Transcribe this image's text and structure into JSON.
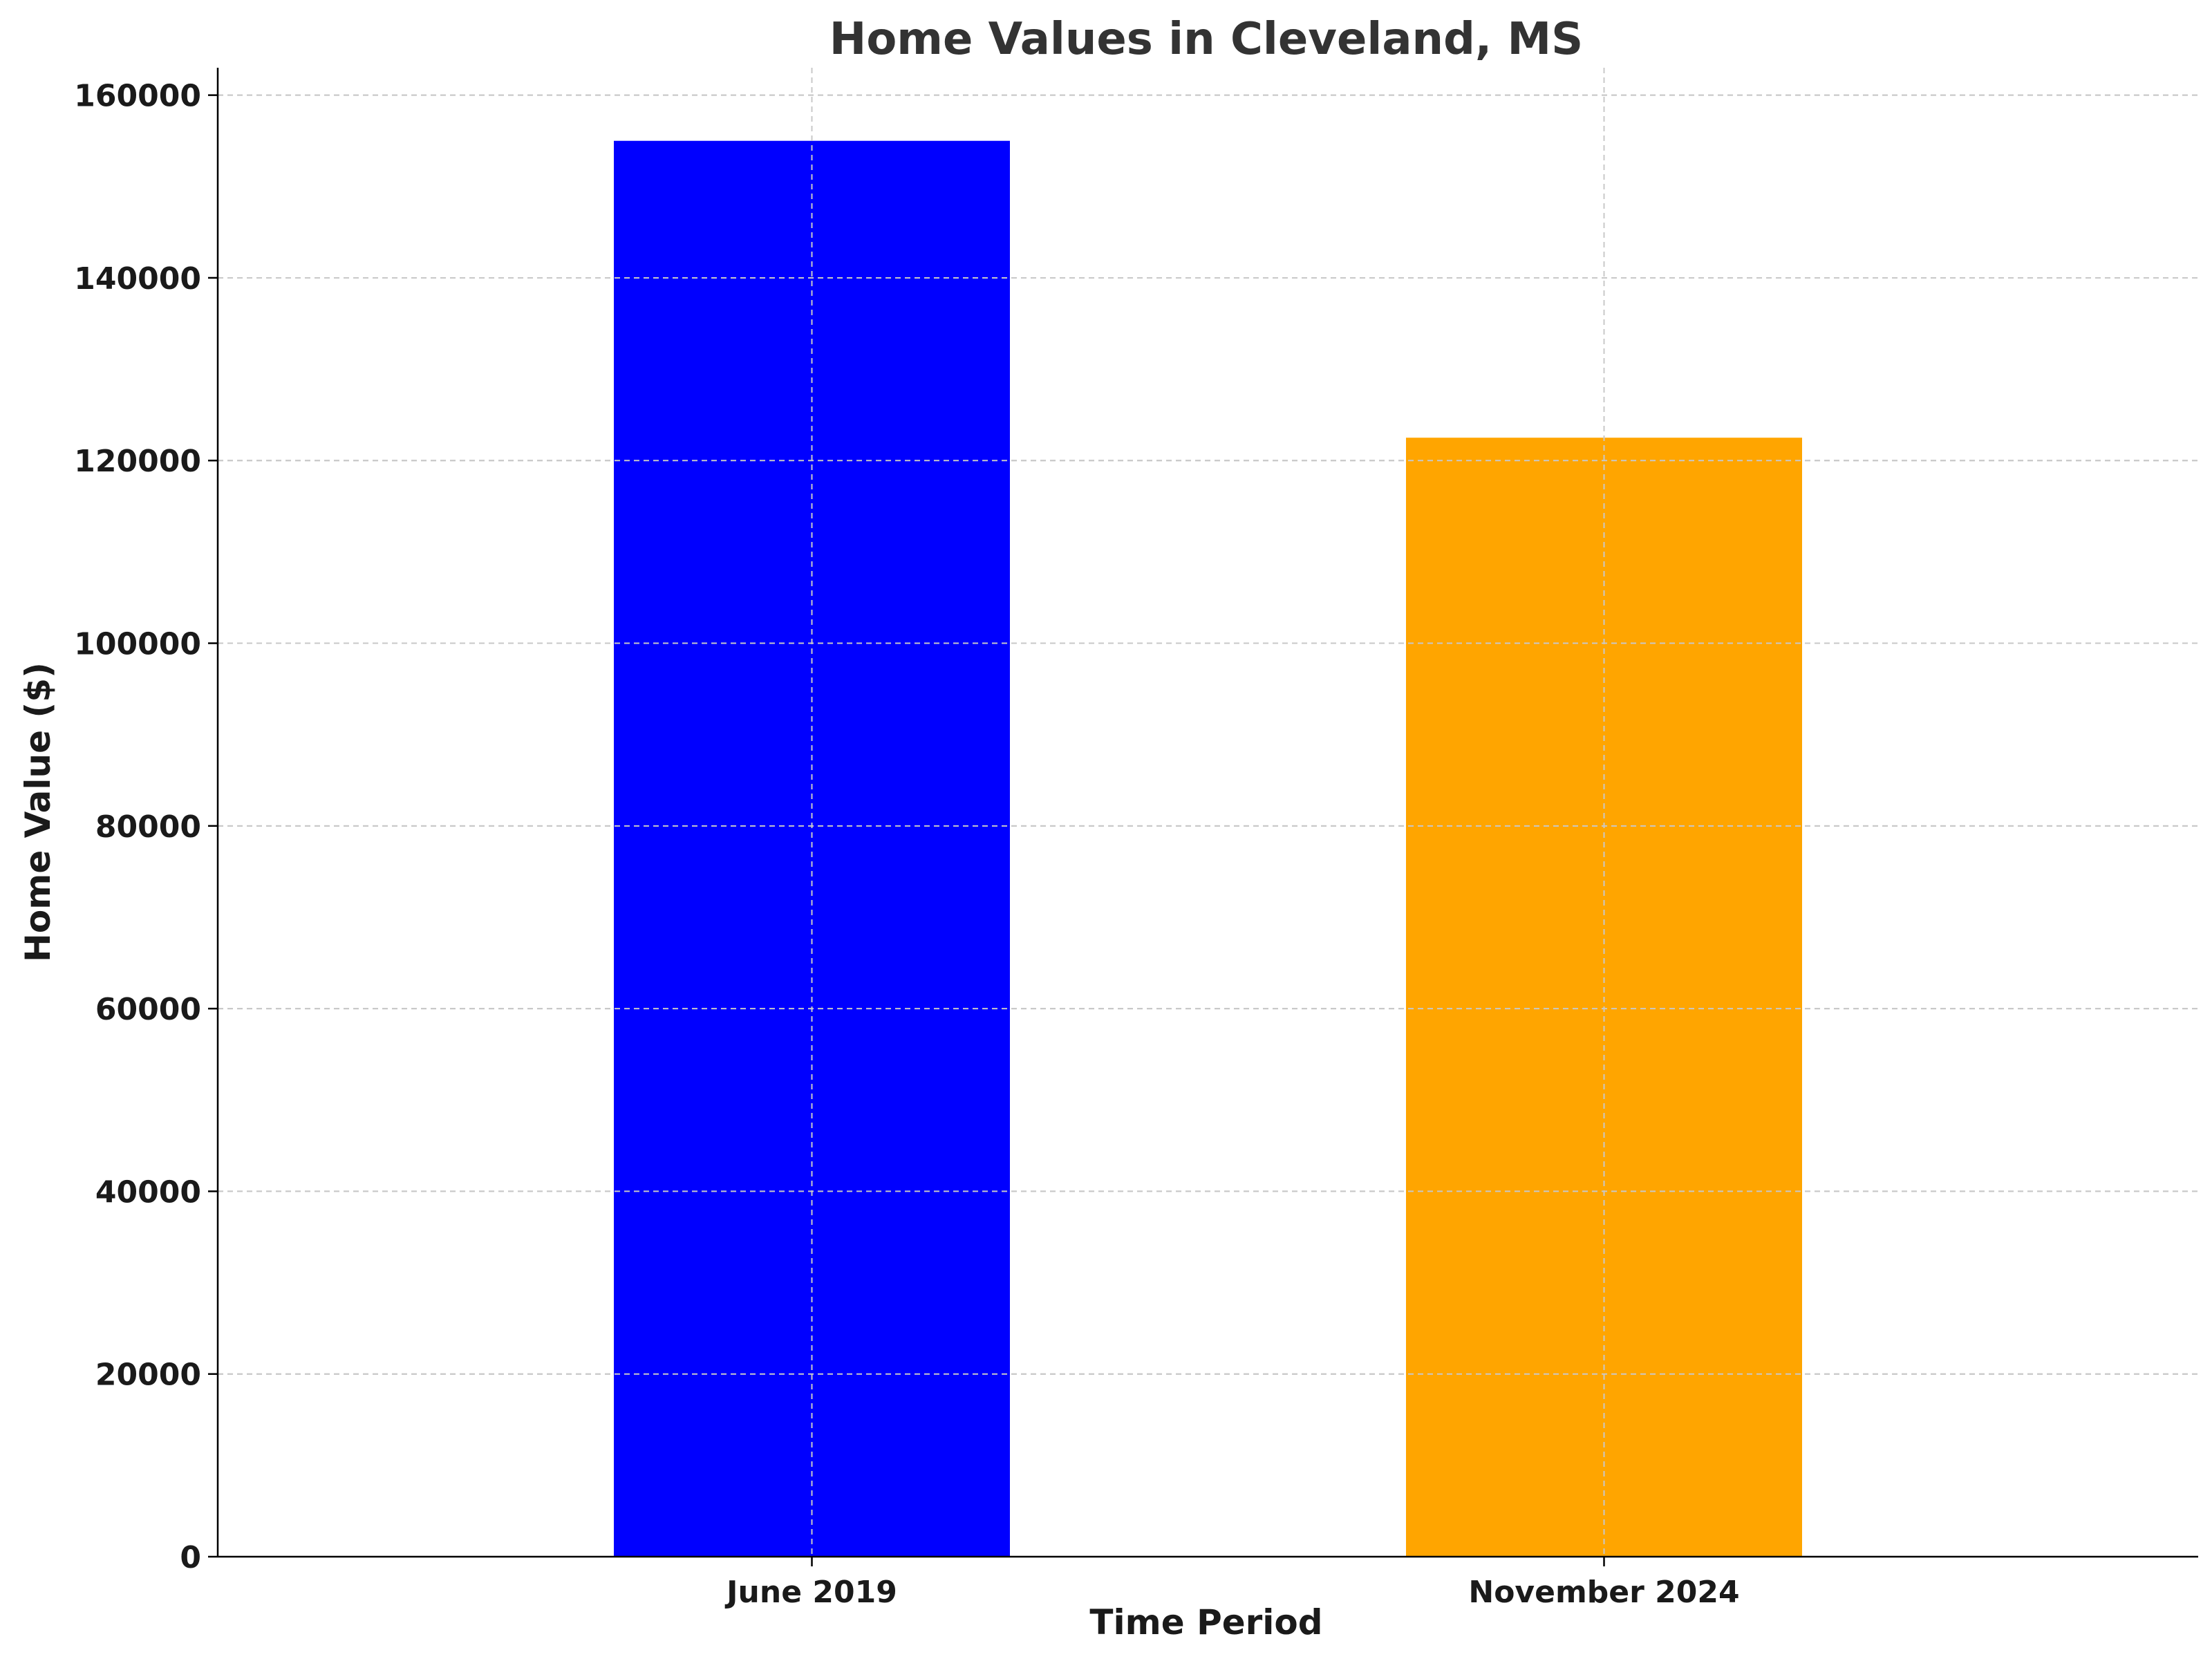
{
  "chart_data": {
    "type": "bar",
    "title": "Home Values in Cleveland, MS",
    "xlabel": "Time Period",
    "ylabel": "Home Value ($)",
    "categories": [
      "June 2019",
      "November 2024"
    ],
    "values": [
      155000,
      122500
    ],
    "colors": [
      "#0000ff",
      "#ffa500"
    ],
    "ylim": [
      0,
      163000
    ],
    "yticks": [
      0,
      20000,
      40000,
      60000,
      80000,
      100000,
      120000,
      140000,
      160000
    ],
    "grid": true,
    "legend": "none"
  }
}
